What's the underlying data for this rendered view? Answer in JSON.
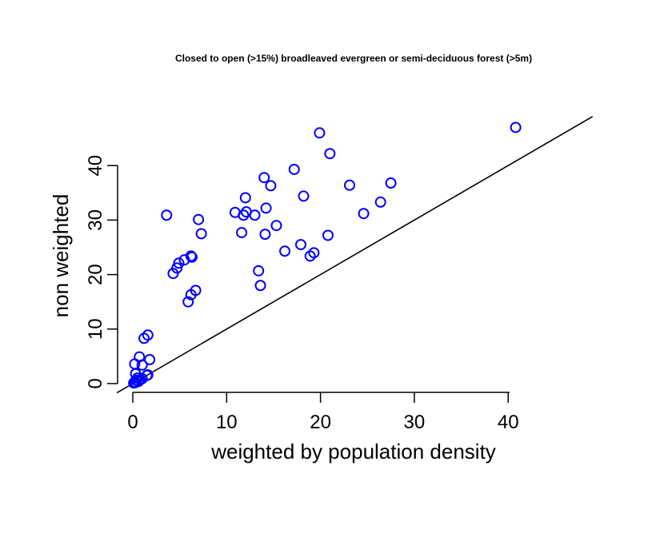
{
  "chart_data": {
    "type": "scatter",
    "title": "Closed to open (>15%) broadleaved evergreen or semi-deciduous forest (>5m)",
    "xlabel": "weighted by population density",
    "ylabel": "non weighted",
    "xlim": [
      -1.5,
      49
    ],
    "ylim": [
      -1.5,
      48.5
    ],
    "x_ticks": [
      0,
      10,
      20,
      30,
      40
    ],
    "y_ticks": [
      0,
      10,
      20,
      30,
      40
    ],
    "grid": false,
    "colors": {
      "points": "#0000ff",
      "axes": "#000000",
      "reference_line": "#000000"
    },
    "reference_line": {
      "type": "identity",
      "slope": 1,
      "intercept": 0
    },
    "series": [
      {
        "marker": "open-circle",
        "points": [
          [
            0.1,
            0.1
          ],
          [
            0.2,
            0.3
          ],
          [
            0.3,
            0.2
          ],
          [
            0.4,
            0.6
          ],
          [
            0.5,
            1.0
          ],
          [
            0.6,
            0.4
          ],
          [
            0.8,
            0.7
          ],
          [
            1.0,
            0.9
          ],
          [
            1.5,
            1.5
          ],
          [
            1.6,
            1.6
          ],
          [
            0.3,
            1.8
          ],
          [
            0.2,
            3.6
          ],
          [
            1.0,
            3.4
          ],
          [
            0.7,
            4.9
          ],
          [
            1.8,
            4.4
          ],
          [
            1.2,
            8.3
          ],
          [
            1.6,
            8.9
          ],
          [
            3.6,
            30.9
          ],
          [
            4.3,
            20.2
          ],
          [
            4.7,
            21.2
          ],
          [
            4.9,
            22.1
          ],
          [
            5.5,
            22.7
          ],
          [
            6.2,
            23.4
          ],
          [
            6.3,
            23.2
          ],
          [
            5.9,
            15.0
          ],
          [
            6.2,
            16.3
          ],
          [
            6.7,
            17.1
          ],
          [
            7.0,
            30.1
          ],
          [
            7.3,
            27.5
          ],
          [
            10.9,
            31.4
          ],
          [
            11.6,
            27.7
          ],
          [
            11.8,
            30.9
          ],
          [
            12.0,
            34.1
          ],
          [
            12.1,
            31.5
          ],
          [
            13.0,
            30.9
          ],
          [
            13.4,
            20.7
          ],
          [
            13.6,
            18.0
          ],
          [
            14.0,
            37.8
          ],
          [
            14.1,
            27.4
          ],
          [
            14.2,
            32.2
          ],
          [
            14.7,
            36.3
          ],
          [
            15.3,
            29.0
          ],
          [
            16.2,
            24.3
          ],
          [
            17.2,
            39.3
          ],
          [
            17.9,
            25.5
          ],
          [
            18.2,
            34.4
          ],
          [
            18.9,
            23.4
          ],
          [
            19.3,
            24.0
          ],
          [
            19.9,
            46.0
          ],
          [
            20.8,
            27.2
          ],
          [
            21.0,
            42.2
          ],
          [
            23.1,
            36.4
          ],
          [
            24.6,
            31.2
          ],
          [
            26.4,
            33.3
          ],
          [
            27.5,
            36.8
          ],
          [
            40.8,
            47.0
          ]
        ]
      }
    ]
  }
}
